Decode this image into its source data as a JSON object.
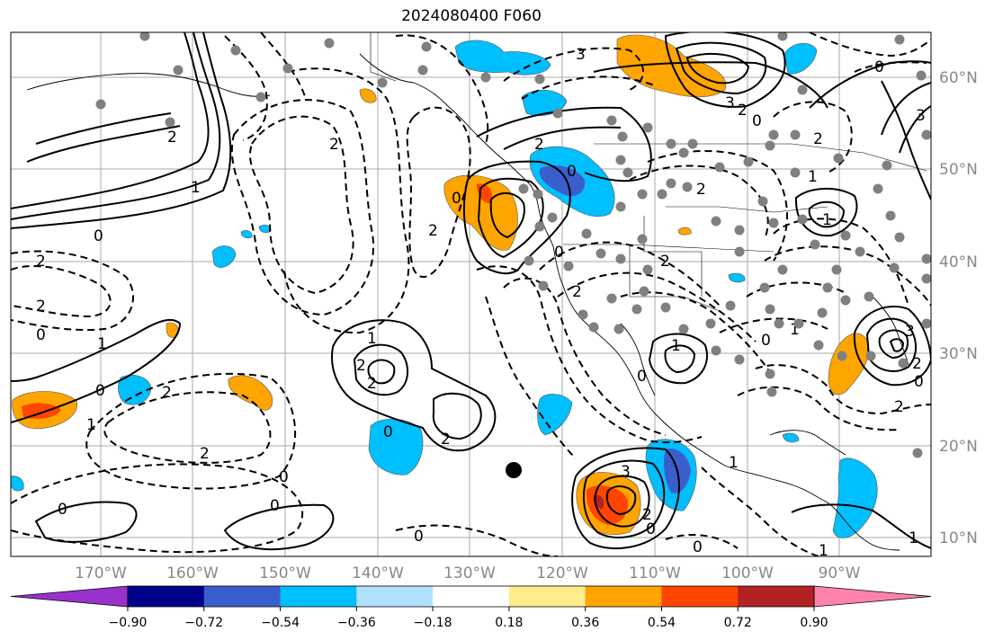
{
  "title": "2024080400 F060",
  "map": {
    "projection": "Mercator",
    "lon_range": [
      -178,
      -78
    ],
    "lat_range": [
      8,
      65
    ],
    "longitude_ticks": [
      "170°W",
      "160°W",
      "150°W",
      "140°W",
      "130°W",
      "120°W",
      "110°W",
      "100°W",
      "90°W"
    ],
    "latitude_ticks": [
      "10°N",
      "20°N",
      "30°N",
      "40°N",
      "50°N",
      "60°N"
    ],
    "contour_labels_positive": [
      "1",
      "2",
      "3"
    ],
    "contour_labels_negative": [
      "0",
      "1",
      "2",
      "3"
    ],
    "marker": "black-dot",
    "station-markers": "gray-dots"
  },
  "colorbar": {
    "ticks": [
      "−0.90",
      "−0.72",
      "−0.54",
      "−0.36",
      "−0.18",
      "0.18",
      "0.36",
      "0.54",
      "0.72",
      "0.90"
    ],
    "colors": [
      "#9932cc",
      "#00008b",
      "#3a5fcd",
      "#00bfff",
      "#b0e2ff",
      "#ffffff",
      "#ffec8b",
      "#ffa500",
      "#ff4500",
      "#b22222",
      "#ff82ab"
    ]
  }
}
